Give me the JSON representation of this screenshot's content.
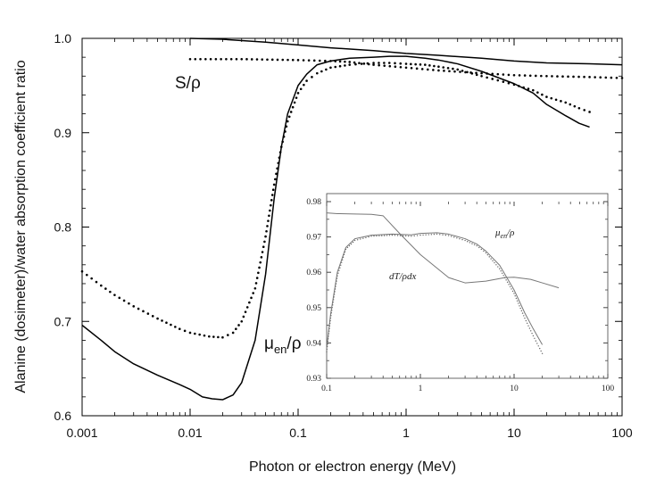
{
  "chart_data": [
    {
      "type": "line",
      "xlabel": "Photon or electron energy (MeV)",
      "ylabel": "Alanine (dosimeter)/water absorption coefficient ratio",
      "xscale": "log",
      "xlim": [
        0.001,
        100
      ],
      "ylim": [
        0.6,
        1.0
      ],
      "x_ticks": [
        0.001,
        0.01,
        0.1,
        1,
        10,
        100
      ],
      "x_tick_labels": [
        "0.001",
        "0.01",
        "0.1",
        "1",
        "10",
        "100"
      ],
      "y_ticks": [
        0.6,
        0.7,
        0.8,
        0.9,
        1.0
      ],
      "y_tick_labels": [
        "0.6",
        "0.7",
        "0.8",
        "0.9",
        "1.0"
      ],
      "grid": false,
      "annotations": [
        {
          "text": "S/ρ",
          "x": 0.012,
          "y": 0.951
        },
        {
          "base": "μ",
          "sub": "en",
          "rest": "/ρ",
          "x": 0.14,
          "y": 0.675
        }
      ],
      "series": [
        {
          "style": "solid",
          "x": [
            0.01,
            0.02,
            0.05,
            0.1,
            0.2,
            0.5,
            1,
            2,
            5,
            10,
            20,
            50,
            100
          ],
          "values": [
            1.0,
            0.999,
            0.996,
            0.993,
            0.99,
            0.987,
            0.984,
            0.982,
            0.979,
            0.976,
            0.974,
            0.973,
            0.972
          ]
        },
        {
          "style": "dotted",
          "x": [
            0.01,
            0.03,
            0.1,
            0.2,
            0.3,
            0.5,
            1,
            2,
            5,
            10,
            20,
            50,
            100
          ],
          "values": [
            0.978,
            0.978,
            0.977,
            0.976,
            0.975,
            0.972,
            0.969,
            0.966,
            0.963,
            0.961,
            0.96,
            0.959,
            0.958
          ]
        },
        {
          "style": "solid",
          "x": [
            0.001,
            0.0015,
            0.002,
            0.003,
            0.005,
            0.008,
            0.01,
            0.013,
            0.016,
            0.02,
            0.025,
            0.03,
            0.04,
            0.05,
            0.06,
            0.07,
            0.08,
            0.1,
            0.12,
            0.15,
            0.2,
            0.3,
            0.5,
            0.7,
            1,
            1.5,
            2,
            3,
            5,
            10,
            15,
            20,
            30,
            40,
            50
          ],
          "values": [
            0.696,
            0.68,
            0.668,
            0.655,
            0.643,
            0.633,
            0.628,
            0.62,
            0.618,
            0.617,
            0.622,
            0.635,
            0.68,
            0.75,
            0.83,
            0.885,
            0.92,
            0.95,
            0.962,
            0.972,
            0.976,
            0.979,
            0.98,
            0.981,
            0.981,
            0.979,
            0.977,
            0.973,
            0.965,
            0.952,
            0.942,
            0.93,
            0.918,
            0.91,
            0.906
          ]
        },
        {
          "style": "dotted",
          "x": [
            0.001,
            0.0015,
            0.002,
            0.003,
            0.005,
            0.008,
            0.01,
            0.015,
            0.02,
            0.025,
            0.03,
            0.04,
            0.05,
            0.06,
            0.07,
            0.08,
            0.1,
            0.12,
            0.15,
            0.2,
            0.3,
            0.5,
            0.7,
            1,
            1.5,
            2,
            3,
            5,
            10,
            15,
            20,
            30,
            40,
            50
          ],
          "values": [
            0.753,
            0.738,
            0.728,
            0.716,
            0.703,
            0.692,
            0.688,
            0.684,
            0.683,
            0.688,
            0.7,
            0.735,
            0.79,
            0.845,
            0.885,
            0.912,
            0.942,
            0.955,
            0.963,
            0.969,
            0.972,
            0.974,
            0.974,
            0.973,
            0.972,
            0.97,
            0.967,
            0.96,
            0.951,
            0.945,
            0.938,
            0.932,
            0.926,
            0.922
          ]
        }
      ]
    },
    {
      "type": "line",
      "xscale": "log",
      "xlim": [
        0.1,
        100
      ],
      "ylim": [
        0.93,
        0.98
      ],
      "x_ticks": [
        0.1,
        1,
        10,
        100
      ],
      "x_tick_labels": [
        "0.1",
        "1",
        "10",
        "100"
      ],
      "y_ticks": [
        0.93,
        0.94,
        0.95,
        0.96,
        0.97,
        0.98
      ],
      "y_tick_labels": [
        "0.93",
        "0.94",
        "0.95",
        "0.96",
        "0.97",
        "0.98"
      ],
      "annotations": [
        {
          "base": "μ",
          "sub": "en",
          "rest": "/ρ",
          "x": 2.9,
          "y": 0.9715
        },
        {
          "text": "dT/ρdx",
          "x": 0.38,
          "y": 0.9615
        }
      ],
      "series": [
        {
          "style": "solid",
          "x": [
            0.1,
            0.13,
            0.2,
            0.3,
            0.4,
            0.6,
            1,
            2,
            3,
            5,
            8,
            10,
            15,
            20,
            30
          ],
          "values": [
            0.9768,
            0.9766,
            0.9765,
            0.9764,
            0.976,
            0.971,
            0.965,
            0.9585,
            0.957,
            0.9575,
            0.9585,
            0.9586,
            0.958,
            0.957,
            0.9556
          ]
        },
        {
          "style": "solid",
          "x": [
            0.1,
            0.11,
            0.13,
            0.16,
            0.2,
            0.3,
            0.5,
            0.8,
            1,
            1.5,
            2,
            3,
            4,
            5,
            7,
            10,
            13,
            16,
            20
          ],
          "values": [
            0.9385,
            0.948,
            0.96,
            0.967,
            0.9695,
            0.9705,
            0.9708,
            0.9706,
            0.971,
            0.9712,
            0.9708,
            0.9695,
            0.968,
            0.966,
            0.962,
            0.955,
            0.9485,
            0.944,
            0.9395
          ]
        },
        {
          "style": "dotted",
          "x": [
            0.1,
            0.11,
            0.13,
            0.16,
            0.2,
            0.3,
            0.5,
            0.8,
            1,
            1.5,
            2,
            3,
            4,
            5,
            7,
            10,
            13,
            16,
            20
          ],
          "values": [
            0.9375,
            0.947,
            0.959,
            0.9665,
            0.969,
            0.9702,
            0.9705,
            0.9702,
            0.9705,
            0.9708,
            0.9704,
            0.969,
            0.9675,
            0.9655,
            0.961,
            0.954,
            0.947,
            0.942,
            0.937
          ]
        }
      ]
    }
  ]
}
